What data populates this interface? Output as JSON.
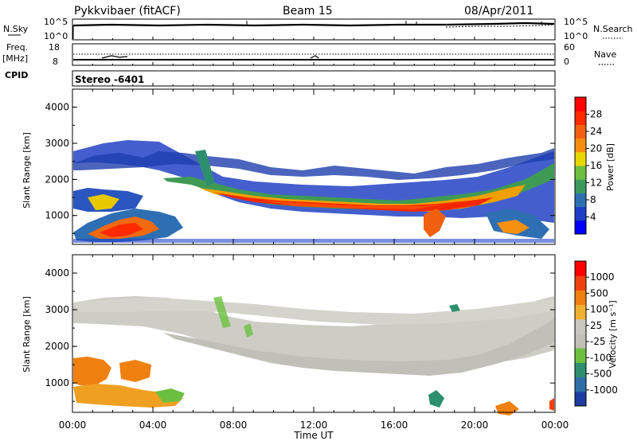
{
  "header": {
    "station": "Pykkvibaer (fitACF)",
    "beam": "Beam 15",
    "date": "08/Apr/2011"
  },
  "top_panel": {
    "left_label": "N.Sky",
    "left_ticks": [
      "10^5",
      "10^0"
    ],
    "right_ticks": [
      "10^5",
      "10^0"
    ],
    "right_label": "N.Search"
  },
  "freq_panel": {
    "label_line1": "Freq.",
    "label_line2": "[MHz]",
    "left_ticks": [
      "18",
      "8"
    ],
    "right_ticks": [
      "60",
      "0"
    ],
    "right_label": "Nave"
  },
  "cpid": {
    "label": "CPID",
    "mode": "Stereo -6401"
  },
  "chart_data": [
    {
      "type": "heatmap",
      "name": "power",
      "ylabel": "Slant Range [km]",
      "yticks": [
        "4000",
        "3000",
        "2000",
        "1000"
      ],
      "y_values": [
        4000,
        3000,
        2000,
        1000
      ],
      "ylim": [
        200,
        4500
      ],
      "colorbar_label": "Power [dB]",
      "colorbar_ticks": [
        "28",
        "24",
        "20",
        "16",
        "12",
        "8",
        "4"
      ],
      "colorbar_colors": [
        "#0000ff",
        "#1e40c8",
        "#2e6fb3",
        "#3c9a5e",
        "#6cc040",
        "#e8d800",
        "#f49010",
        "#f46010",
        "#ff2a00",
        "#ff0000"
      ]
    },
    {
      "type": "heatmap",
      "name": "velocity",
      "ylabel": "Slant Range [km]",
      "yticks": [
        "4000",
        "3000",
        "2000",
        "1000"
      ],
      "y_values": [
        4000,
        3000,
        2000,
        1000
      ],
      "ylim": [
        200,
        4500
      ],
      "colorbar_label": "Velocity [m s⁻¹]",
      "colorbar_ticks": [
        "1000",
        "500",
        "100",
        "25",
        "-25",
        "-100",
        "-500",
        "-1000"
      ],
      "colorbar_colors": [
        "#1e3ca0",
        "#2f6fa8",
        "#2e8f6e",
        "#6cc040",
        "#c0c0b8",
        "#c8c8c0",
        "#f0b030",
        "#f08010",
        "#f04010",
        "#ff0000"
      ]
    }
  ],
  "x_axis": {
    "ticks": [
      "00:00",
      "04:00",
      "08:00",
      "12:00",
      "16:00",
      "20:00",
      "00:00"
    ],
    "hours": [
      0,
      4,
      8,
      12,
      16,
      20,
      24
    ],
    "label": "Time UT"
  }
}
